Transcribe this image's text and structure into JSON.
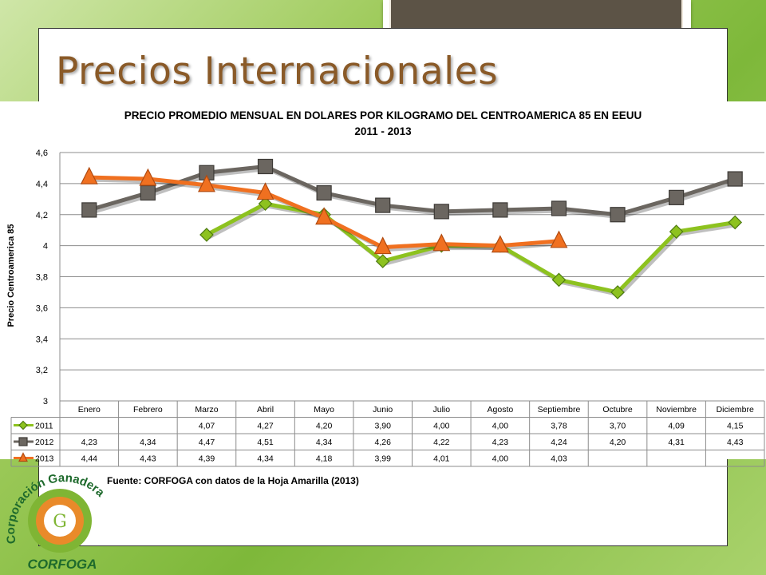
{
  "slide": {
    "title": "Precios Internacionales",
    "source": "Fuente: CORFOGA con datos de la Hoja Amarilla (2013)",
    "logo_text_top": "Corporación Ganadera",
    "logo_text_bottom": "CORFOGA"
  },
  "chart_data": {
    "type": "line",
    "title": "PRECIO PROMEDIO MENSUAL EN DOLARES POR KILOGRAMO DEL CENTROAMERICA 85 EN EEUU",
    "subtitle": "2011 - 2013",
    "ylabel": "Precio Centroamerica 85",
    "ylim": [
      3,
      4.6
    ],
    "yticks": [
      "3",
      "3,2",
      "3,4",
      "3,6",
      "3,8",
      "4",
      "4,2",
      "4,4",
      "4,6"
    ],
    "categories": [
      "Enero",
      "Febrero",
      "Marzo",
      "Abril",
      "Mayo",
      "Junio",
      "Julio",
      "Agosto",
      "Septiembre",
      "Octubre",
      "Noviembre",
      "Diciembre"
    ],
    "grid": true,
    "legend": "data-table",
    "series": [
      {
        "name": "2011",
        "color": "#8dc21f",
        "marker": "diamond",
        "values": [
          null,
          null,
          4.07,
          4.27,
          4.2,
          3.9,
          4.0,
          4.0,
          3.78,
          3.7,
          4.09,
          4.15
        ],
        "labels": [
          "",
          "",
          "4,07",
          "4,27",
          "4,20",
          "3,90",
          "4,00",
          "4,00",
          "3,78",
          "3,70",
          "4,09",
          "4,15"
        ]
      },
      {
        "name": "2012",
        "color": "#6b6660",
        "marker": "square",
        "values": [
          4.23,
          4.34,
          4.47,
          4.51,
          4.34,
          4.26,
          4.22,
          4.23,
          4.24,
          4.2,
          4.31,
          4.43
        ],
        "labels": [
          "4,23",
          "4,34",
          "4,47",
          "4,51",
          "4,34",
          "4,26",
          "4,22",
          "4,23",
          "4,24",
          "4,20",
          "4,31",
          "4,43"
        ]
      },
      {
        "name": "2013",
        "color": "#f07020",
        "marker": "triangle",
        "values": [
          4.44,
          4.43,
          4.39,
          4.34,
          4.18,
          3.99,
          4.01,
          4.0,
          4.03,
          null,
          null,
          null
        ],
        "labels": [
          "4,44",
          "4,43",
          "4,39",
          "4,34",
          "4,18",
          "3,99",
          "4,01",
          "4,00",
          "4,03",
          "",
          "",
          ""
        ]
      }
    ]
  }
}
